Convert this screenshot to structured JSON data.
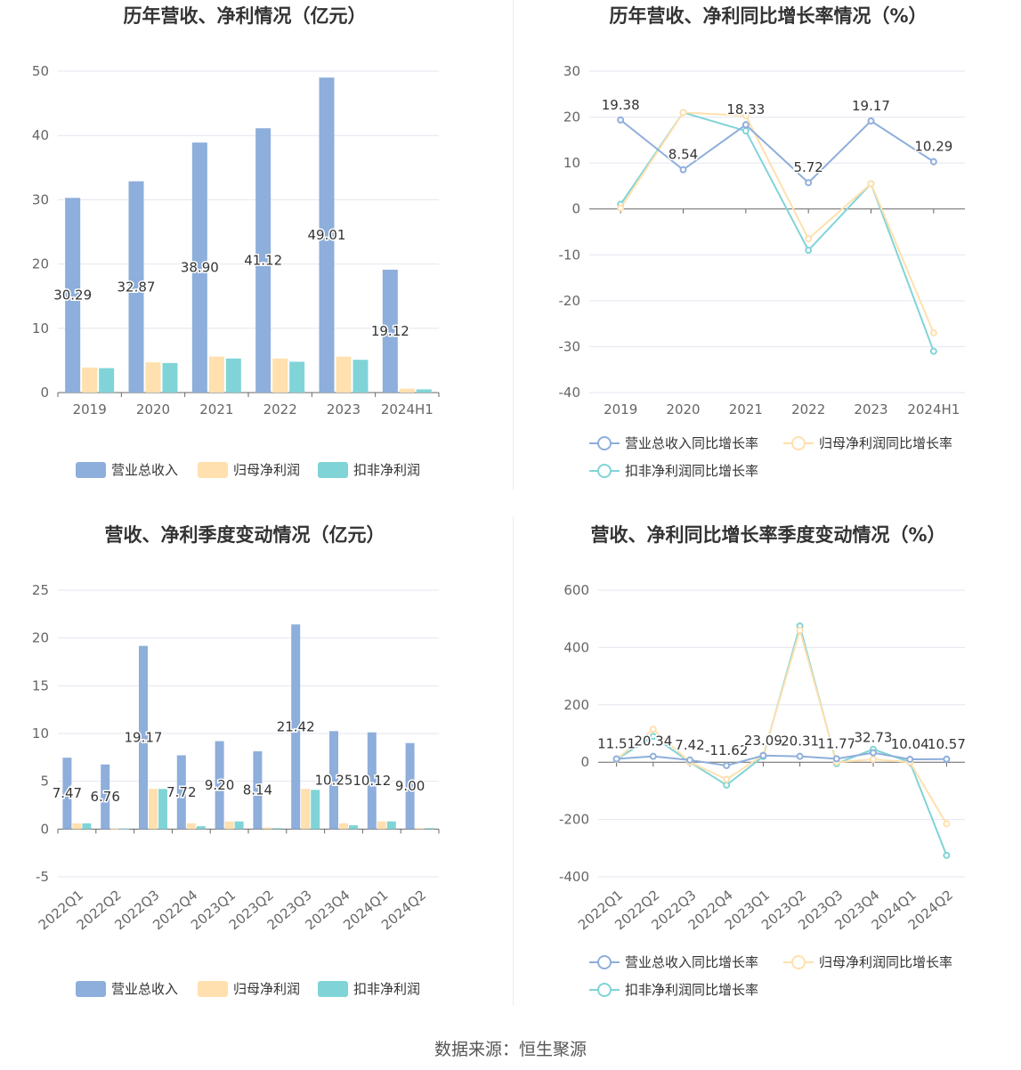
{
  "footer": "数据来源：恒生聚源",
  "colors": {
    "revenue": "#8eaedb",
    "net_profit": "#ffe0ae",
    "deducted_profit": "#80d4d7",
    "line_revenue": "#8eaedb",
    "line_net": "#ffe0ae",
    "line_deducted": "#80d4d7",
    "grid": "#e4e6f0",
    "axis": "#666666"
  },
  "chart_data": [
    {
      "id": "annual-bar",
      "type": "bar",
      "title": "历年营收、净利情况（亿元）",
      "categories": [
        "2019",
        "2020",
        "2021",
        "2022",
        "2023",
        "2024H1"
      ],
      "ylim": [
        0,
        50
      ],
      "yticks": [
        0,
        10,
        20,
        30,
        40,
        50
      ],
      "grid": true,
      "legend": "bottom",
      "series": [
        {
          "name": "营业总收入",
          "values": [
            30.29,
            32.87,
            38.9,
            41.12,
            49.01,
            19.12
          ],
          "labels": [
            "30.29",
            "32.87",
            "38.90",
            "41.12",
            "49.01",
            "19.12"
          ]
        },
        {
          "name": "归母净利润",
          "values": [
            3.9,
            4.7,
            5.6,
            5.3,
            5.6,
            0.6
          ]
        },
        {
          "name": "扣非净利润",
          "values": [
            3.8,
            4.6,
            5.3,
            4.8,
            5.1,
            0.5
          ]
        }
      ]
    },
    {
      "id": "annual-growth",
      "type": "line",
      "title": "历年营收、净利同比增长率情况（%）",
      "categories": [
        "2019",
        "2020",
        "2021",
        "2022",
        "2023",
        "2024H1"
      ],
      "ylim": [
        -40,
        30
      ],
      "yticks": [
        -40,
        -30,
        -20,
        -10,
        0,
        10,
        20,
        30
      ],
      "grid": true,
      "legend": "bottom",
      "series": [
        {
          "name": "营业总收入同比增长率",
          "values": [
            19.38,
            8.54,
            18.33,
            5.72,
            19.17,
            10.29
          ],
          "labels": [
            "19.38",
            "8.54",
            "18.33",
            "5.72",
            "19.17",
            "10.29"
          ]
        },
        {
          "name": "归母净利润同比增长率",
          "values": [
            0.2,
            21.0,
            20.3,
            -6.5,
            5.5,
            -27.0
          ]
        },
        {
          "name": "扣非净利润同比增长率",
          "values": [
            1.0,
            21.0,
            17.0,
            -9.0,
            5.5,
            -31.0
          ]
        }
      ]
    },
    {
      "id": "quarterly-bar",
      "type": "bar",
      "title": "营收、净利季度变动情况（亿元）",
      "categories": [
        "2022Q1",
        "2022Q2",
        "2022Q3",
        "2022Q4",
        "2023Q1",
        "2023Q2",
        "2023Q3",
        "2023Q4",
        "2024Q1",
        "2024Q2"
      ],
      "ylim": [
        -5,
        25
      ],
      "yticks": [
        -5,
        0,
        5,
        10,
        15,
        20,
        25
      ],
      "grid": true,
      "legend": "bottom",
      "series": [
        {
          "name": "营业总收入",
          "values": [
            7.47,
            6.76,
            19.17,
            7.72,
            9.2,
            8.14,
            21.42,
            10.25,
            10.12,
            9.0
          ],
          "labels": [
            "7.47",
            "6.76",
            "19.17",
            "7.72",
            "9.20",
            "8.14",
            "21.42",
            "10.25",
            "10.12",
            "9.00"
          ]
        },
        {
          "name": "归母净利润",
          "values": [
            0.6,
            0.05,
            4.2,
            0.6,
            0.8,
            0.15,
            4.2,
            0.6,
            0.8,
            0.1
          ]
        },
        {
          "name": "扣非净利润",
          "values": [
            0.6,
            0.05,
            4.2,
            0.3,
            0.8,
            0.1,
            4.1,
            0.4,
            0.8,
            0.1
          ]
        }
      ]
    },
    {
      "id": "quarterly-growth",
      "type": "line",
      "title": "营收、净利同比增长率季度变动情况（%）",
      "categories": [
        "2022Q1",
        "2022Q2",
        "2022Q3",
        "2022Q4",
        "2023Q1",
        "2023Q2",
        "2023Q3",
        "2023Q4",
        "2024Q1",
        "2024Q2"
      ],
      "ylim": [
        -400,
        600
      ],
      "yticks": [
        -400,
        -200,
        0,
        200,
        400,
        600
      ],
      "grid": true,
      "legend": "bottom",
      "series": [
        {
          "name": "营业总收入同比增长率",
          "values": [
            11.51,
            20.34,
            7.42,
            -11.62,
            23.09,
            20.31,
            11.77,
            32.73,
            10.04,
            10.57
          ],
          "labels": [
            "11.51",
            "20.34",
            "7.42",
            "-11.62",
            "23.09",
            "20.31",
            "11.77",
            "32.73",
            "10.04",
            "10.57"
          ]
        },
        {
          "name": "归母净利润同比增长率",
          "values": [
            10,
            115,
            0,
            -60,
            25,
            460,
            0,
            10,
            0,
            -215
          ]
        },
        {
          "name": "扣非净利润同比增长率",
          "values": [
            10,
            90,
            0,
            -80,
            20,
            475,
            -5,
            45,
            0,
            -325
          ]
        }
      ]
    }
  ]
}
